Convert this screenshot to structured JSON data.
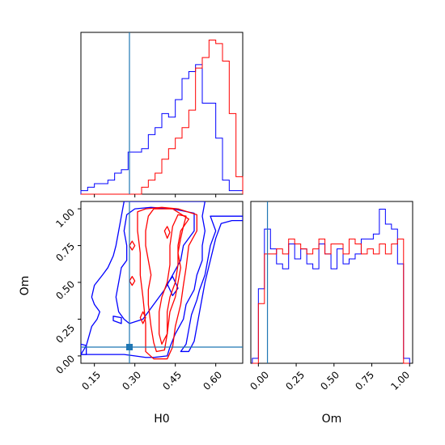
{
  "chart_data": {
    "type": "corner",
    "parameters": [
      "H0",
      "Om"
    ],
    "truths": {
      "H0": 0.28,
      "Om": 0.06
    },
    "colors": {
      "series_blue": "#0000ff",
      "series_red": "#ff0000",
      "truth_line": "#1f77b4",
      "frame": "#000000"
    },
    "panels": [
      {
        "id": "H0-hist",
        "kind": "step-histogram",
        "xlim": [
          0.1,
          0.7
        ],
        "bins": [
          0.1,
          0.125,
          0.15,
          0.175,
          0.2,
          0.225,
          0.25,
          0.275,
          0.3,
          0.325,
          0.35,
          0.375,
          0.4,
          0.425,
          0.45,
          0.475,
          0.5,
          0.525,
          0.55,
          0.575,
          0.6,
          0.625,
          0.65,
          0.675,
          0.7
        ],
        "series": [
          {
            "color": "blue",
            "values": [
              1,
              2,
              3,
              3,
              4,
              6,
              7,
              12,
              12,
              13,
              17,
              19,
              23,
              22,
              27,
              33,
              35,
              37,
              26,
              26,
              16,
              4,
              1,
              1
            ]
          },
          {
            "color": "red",
            "values": [
              0,
              0,
              0,
              0,
              0,
              0,
              0,
              0,
              0,
              2,
              4,
              6,
              10,
              13,
              16,
              19,
              24,
              36,
              39,
              44,
              43,
              38,
              23,
              5
            ]
          }
        ]
      },
      {
        "id": "Om-hist",
        "kind": "step-histogram",
        "xlim": [
          -0.05,
          1.02
        ],
        "bins": [
          -0.04,
          0.0,
          0.04,
          0.08,
          0.12,
          0.16,
          0.2,
          0.24,
          0.28,
          0.32,
          0.36,
          0.4,
          0.44,
          0.48,
          0.52,
          0.56,
          0.6,
          0.64,
          0.68,
          0.72,
          0.76,
          0.8,
          0.84,
          0.88,
          0.92,
          0.96,
          1.0
        ],
        "series": [
          {
            "color": "blue",
            "values": [
              1,
              15,
              27,
              23,
              20,
              19,
              24,
              21,
              23,
              20,
              19,
              24,
              22,
              19,
              23,
              20,
              21,
              22,
              25,
              25,
              26,
              31,
              28,
              27,
              20,
              1
            ]
          },
          {
            "color": "red",
            "values": [
              0,
              12,
              22,
              22,
              23,
              22,
              25,
              24,
              23,
              22,
              23,
              25,
              22,
              24,
              24,
              22,
              25,
              24,
              22,
              23,
              22,
              24,
              22,
              24,
              25,
              0
            ]
          }
        ]
      },
      {
        "id": "H0-Om-2d",
        "kind": "contour",
        "xlim": [
          0.1,
          0.7
        ],
        "ylim": [
          -0.05,
          1.05
        ],
        "xlabel": "H0",
        "ylabel": "Om",
        "xticks": [
          "0.15",
          "0.30",
          "0.45",
          "0.60"
        ],
        "yticks": [
          "0.00",
          "0.25",
          "0.50",
          "0.75",
          "1.00"
        ],
        "contours": [
          {
            "color": "blue",
            "points": [
              [
                0.1,
                0.01
              ],
              [
                0.12,
                0.07
              ],
              [
                0.14,
                0.2
              ],
              [
                0.16,
                0.25
              ],
              [
                0.17,
                0.3
              ],
              [
                0.15,
                0.35
              ],
              [
                0.14,
                0.4
              ],
              [
                0.15,
                0.48
              ],
              [
                0.18,
                0.55
              ],
              [
                0.2,
                0.6
              ],
              [
                0.22,
                0.68
              ],
              [
                0.23,
                0.75
              ],
              [
                0.24,
                0.85
              ],
              [
                0.25,
                0.95
              ],
              [
                0.26,
                1.05
              ],
              [
                0.56,
                1.05
              ],
              [
                0.55,
                0.95
              ],
              [
                0.56,
                0.85
              ],
              [
                0.55,
                0.75
              ],
              [
                0.55,
                0.65
              ],
              [
                0.53,
                0.55
              ],
              [
                0.52,
                0.45
              ],
              [
                0.49,
                0.35
              ],
              [
                0.48,
                0.25
              ],
              [
                0.45,
                0.15
              ],
              [
                0.43,
                0.06
              ],
              [
                0.42,
                0.0
              ],
              [
                0.37,
                -0.01
              ],
              [
                0.34,
                -0.01
              ],
              [
                0.3,
                0.0
              ],
              [
                0.26,
                0.01
              ],
              [
                0.2,
                0.01
              ],
              [
                0.14,
                0.01
              ]
            ]
          },
          {
            "color": "blue",
            "points": [
              [
                0.1,
                0.08
              ],
              [
                0.12,
                0.07
              ],
              [
                0.12,
                0.01
              ],
              [
                0.1,
                0.01
              ]
            ]
          },
          {
            "color": "blue",
            "points": [
              [
                0.26,
                0.25
              ],
              [
                0.24,
                0.3
              ],
              [
                0.23,
                0.4
              ],
              [
                0.24,
                0.5
              ],
              [
                0.25,
                0.6
              ],
              [
                0.27,
                0.65
              ],
              [
                0.27,
                0.75
              ],
              [
                0.26,
                0.85
              ],
              [
                0.27,
                0.96
              ],
              [
                0.3,
                1.0
              ],
              [
                0.36,
                1.01
              ],
              [
                0.44,
                1.0
              ],
              [
                0.52,
                0.97
              ],
              [
                0.52,
                0.85
              ],
              [
                0.48,
                0.75
              ],
              [
                0.47,
                0.65
              ],
              [
                0.44,
                0.55
              ],
              [
                0.41,
                0.45
              ],
              [
                0.37,
                0.35
              ],
              [
                0.33,
                0.25
              ],
              [
                0.28,
                0.22
              ]
            ]
          },
          {
            "color": "blue",
            "points": [
              [
                0.58,
                0.95
              ],
              [
                0.6,
                0.85
              ],
              [
                0.58,
                0.75
              ],
              [
                0.57,
                0.65
              ],
              [
                0.56,
                0.55
              ],
              [
                0.54,
                0.45
              ],
              [
                0.53,
                0.38
              ],
              [
                0.51,
                0.28
              ],
              [
                0.5,
                0.18
              ],
              [
                0.49,
                0.08
              ],
              [
                0.47,
                0.03
              ],
              [
                0.5,
                0.03
              ],
              [
                0.52,
                0.1
              ],
              [
                0.54,
                0.3
              ],
              [
                0.56,
                0.5
              ],
              [
                0.58,
                0.65
              ],
              [
                0.6,
                0.8
              ],
              [
                0.62,
                0.9
              ],
              [
                0.66,
                0.92
              ],
              [
                0.7,
                0.92
              ],
              [
                0.7,
                0.95
              ]
            ]
          },
          {
            "color": "blue",
            "points": [
              [
                0.22,
                0.27
              ],
              [
                0.25,
                0.26
              ],
              [
                0.25,
                0.22
              ],
              [
                0.22,
                0.24
              ]
            ]
          },
          {
            "color": "blue",
            "points": [
              [
                0.44,
                0.41
              ],
              [
                0.42,
                0.49
              ],
              [
                0.44,
                0.54
              ],
              [
                0.46,
                0.46
              ]
            ]
          },
          {
            "color": "red",
            "points": [
              [
                0.37,
                0.09
              ],
              [
                0.36,
                0.2
              ],
              [
                0.35,
                0.35
              ],
              [
                0.35,
                0.45
              ],
              [
                0.36,
                0.55
              ],
              [
                0.35,
                0.65
              ],
              [
                0.34,
                0.75
              ],
              [
                0.34,
                0.85
              ],
              [
                0.35,
                0.95
              ],
              [
                0.37,
                1.0
              ],
              [
                0.44,
                1.0
              ],
              [
                0.5,
                0.93
              ],
              [
                0.47,
                0.85
              ],
              [
                0.46,
                0.75
              ],
              [
                0.46,
                0.62
              ],
              [
                0.45,
                0.5
              ],
              [
                0.43,
                0.4
              ],
              [
                0.42,
                0.3
              ],
              [
                0.42,
                0.15
              ],
              [
                0.41,
                0.04
              ],
              [
                0.38,
                0.03
              ]
            ]
          },
          {
            "color": "red",
            "points": [
              [
                0.42,
                0.15
              ],
              [
                0.43,
                0.3
              ],
              [
                0.45,
                0.4
              ],
              [
                0.46,
                0.5
              ],
              [
                0.47,
                0.6
              ],
              [
                0.46,
                0.7
              ],
              [
                0.47,
                0.8
              ],
              [
                0.48,
                0.88
              ],
              [
                0.49,
                0.95
              ],
              [
                0.46,
                0.96
              ],
              [
                0.44,
                0.88
              ],
              [
                0.43,
                0.75
              ],
              [
                0.43,
                0.62
              ],
              [
                0.42,
                0.5
              ],
              [
                0.4,
                0.4
              ],
              [
                0.39,
                0.3
              ],
              [
                0.39,
                0.15
              ],
              [
                0.4,
                0.08
              ]
            ]
          },
          {
            "color": "red",
            "points": [
              [
                0.34,
                0.03
              ],
              [
                0.34,
                0.22
              ],
              [
                0.33,
                0.4
              ],
              [
                0.32,
                0.55
              ],
              [
                0.32,
                0.7
              ],
              [
                0.31,
                0.85
              ],
              [
                0.31,
                0.98
              ],
              [
                0.34,
                1.0
              ],
              [
                0.4,
                1.01
              ],
              [
                0.46,
                1.0
              ],
              [
                0.53,
                0.96
              ],
              [
                0.53,
                0.85
              ],
              [
                0.5,
                0.75
              ],
              [
                0.49,
                0.6
              ],
              [
                0.48,
                0.48
              ],
              [
                0.47,
                0.35
              ],
              [
                0.45,
                0.2
              ],
              [
                0.44,
                0.06
              ],
              [
                0.42,
                -0.02
              ],
              [
                0.37,
                -0.02
              ]
            ]
          },
          {
            "color": "red",
            "points": [
              [
                0.28,
                0.51
              ],
              [
                0.29,
                0.54
              ],
              [
                0.3,
                0.51
              ],
              [
                0.29,
                0.48
              ]
            ]
          },
          {
            "color": "red",
            "points": [
              [
                0.32,
                0.26
              ],
              [
                0.33,
                0.3
              ],
              [
                0.34,
                0.26
              ],
              [
                0.33,
                0.22
              ]
            ]
          },
          {
            "color": "red",
            "points": [
              [
                0.28,
                0.75
              ],
              [
                0.29,
                0.78
              ],
              [
                0.3,
                0.75
              ],
              [
                0.29,
                0.72
              ]
            ]
          },
          {
            "color": "red",
            "points": [
              [
                0.41,
                0.85
              ],
              [
                0.42,
                0.88
              ],
              [
                0.43,
                0.84
              ],
              [
                0.42,
                0.8
              ]
            ]
          }
        ]
      }
    ]
  },
  "labels": {
    "bottom_left_x": "H0",
    "bottom_left_y": "Om",
    "bottom_right_x": "Om",
    "h0_ticks": [
      "0.15",
      "0.30",
      "0.45",
      "0.60"
    ],
    "om_ticks": [
      "0.00",
      "0.25",
      "0.50",
      "0.75",
      "1.00"
    ]
  }
}
